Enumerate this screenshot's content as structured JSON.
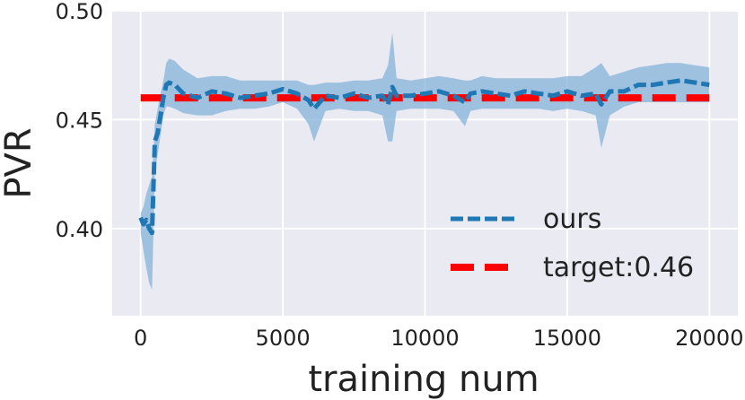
{
  "chart_data": {
    "type": "line",
    "xlabel": "training num",
    "ylabel": "PVR",
    "xlim": [
      -1000,
      21000
    ],
    "ylim": [
      0.36,
      0.5
    ],
    "xticks": [
      0,
      5000,
      10000,
      15000,
      20000
    ],
    "xtick_labels": [
      "0",
      "5000",
      "10000",
      "15000",
      "20000"
    ],
    "yticks": [
      0.4,
      0.45,
      0.5
    ],
    "ytick_labels": [
      "0.40",
      "0.45",
      "0.50"
    ],
    "grid": true,
    "legend_position": "lower-right",
    "colors": {
      "background": "#EAEAF2",
      "grid": "#FFFFFF",
      "ours": "#1F77B4",
      "band": "#7FAFD8",
      "target": "#FF0000"
    },
    "series": [
      {
        "name": "ours",
        "style": "dashed",
        "x": [
          0,
          100,
          200,
          300,
          400,
          500,
          600,
          700,
          800,
          900,
          1000,
          1200,
          1500,
          2000,
          2500,
          3000,
          3500,
          4000,
          4500,
          5000,
          5500,
          5900,
          6100,
          6500,
          7000,
          7500,
          8000,
          8500,
          8700,
          8850,
          9000,
          9500,
          10000,
          10500,
          11000,
          11400,
          11600,
          12000,
          12500,
          13000,
          13500,
          14000,
          14500,
          15000,
          15500,
          16000,
          16200,
          16500,
          17000,
          17500,
          18000,
          18500,
          19000,
          19500,
          20000
        ],
        "y": [
          0.405,
          0.402,
          0.404,
          0.4,
          0.398,
          0.44,
          0.444,
          0.452,
          0.46,
          0.466,
          0.467,
          0.466,
          0.462,
          0.46,
          0.463,
          0.462,
          0.46,
          0.461,
          0.462,
          0.464,
          0.462,
          0.459,
          0.455,
          0.461,
          0.46,
          0.462,
          0.46,
          0.461,
          0.457,
          0.465,
          0.461,
          0.461,
          0.462,
          0.463,
          0.461,
          0.458,
          0.462,
          0.463,
          0.462,
          0.461,
          0.463,
          0.462,
          0.461,
          0.463,
          0.461,
          0.462,
          0.457,
          0.463,
          0.463,
          0.466,
          0.466,
          0.467,
          0.468,
          0.467,
          0.466
        ],
        "lower": [
          0.398,
          0.39,
          0.382,
          0.375,
          0.372,
          0.426,
          0.434,
          0.443,
          0.452,
          0.456,
          0.456,
          0.455,
          0.453,
          0.452,
          0.452,
          0.454,
          0.455,
          0.455,
          0.456,
          0.458,
          0.455,
          0.448,
          0.44,
          0.454,
          0.455,
          0.454,
          0.454,
          0.452,
          0.44,
          0.44,
          0.454,
          0.455,
          0.455,
          0.455,
          0.454,
          0.447,
          0.454,
          0.455,
          0.455,
          0.455,
          0.455,
          0.455,
          0.454,
          0.455,
          0.454,
          0.452,
          0.437,
          0.452,
          0.456,
          0.458,
          0.458,
          0.458,
          0.458,
          0.458,
          0.458
        ],
        "upper": [
          0.407,
          0.41,
          0.416,
          0.42,
          0.424,
          0.448,
          0.455,
          0.462,
          0.468,
          0.476,
          0.478,
          0.477,
          0.473,
          0.469,
          0.47,
          0.47,
          0.468,
          0.468,
          0.468,
          0.468,
          0.468,
          0.466,
          0.466,
          0.467,
          0.467,
          0.468,
          0.468,
          0.469,
          0.475,
          0.49,
          0.469,
          0.468,
          0.469,
          0.47,
          0.469,
          0.468,
          0.468,
          0.47,
          0.469,
          0.469,
          0.469,
          0.469,
          0.469,
          0.47,
          0.47,
          0.474,
          0.476,
          0.47,
          0.472,
          0.474,
          0.475,
          0.476,
          0.476,
          0.475,
          0.474
        ]
      },
      {
        "name": "target:0.46",
        "style": "dashed",
        "x": [
          0,
          20000
        ],
        "y": [
          0.46,
          0.46
        ]
      }
    ]
  }
}
